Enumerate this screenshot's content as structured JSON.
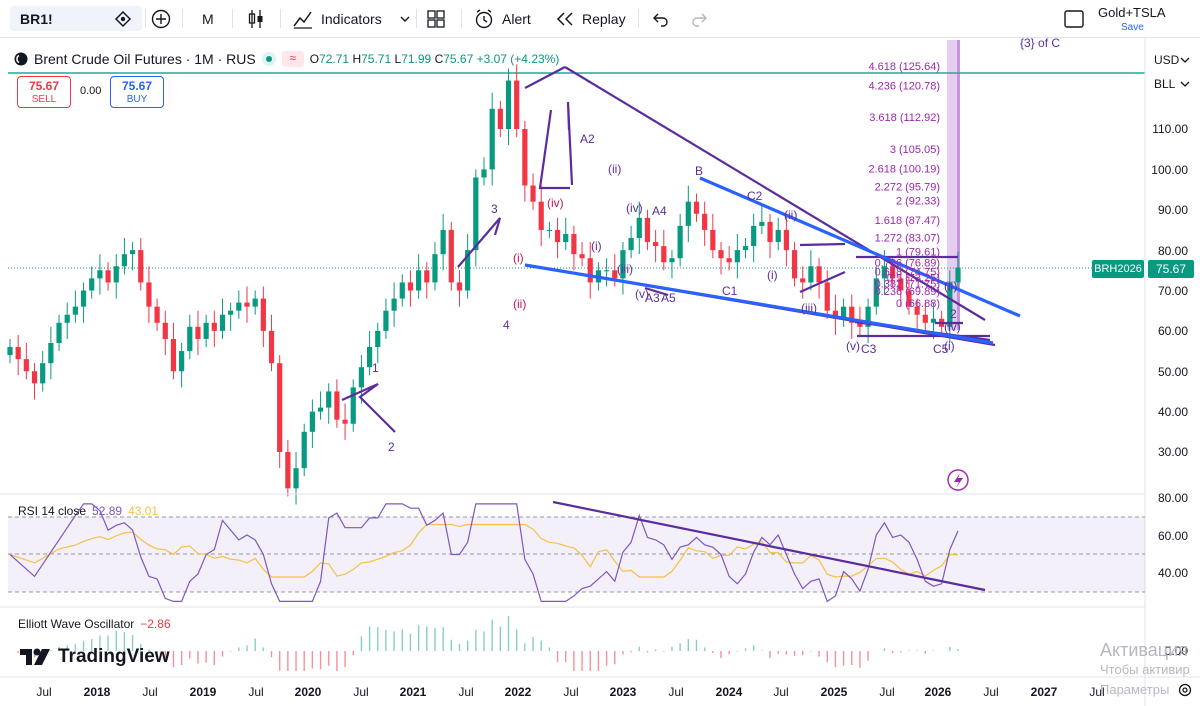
{
  "toolbar": {
    "symbol": "BR1!",
    "interval": "M",
    "indicators_label": "Indicators",
    "alert_label": "Alert",
    "replay_label": "Replay",
    "layout_name": "Gold+TSLA",
    "save_label": "Save"
  },
  "legend": {
    "title": "Brent Crude Oil Futures · 1M · RUS",
    "open_key": "O",
    "open": "72.71",
    "high_key": "H",
    "high": "75.71",
    "low_key": "L",
    "low": "71.99",
    "close_key": "C",
    "close": "75.67",
    "change": "+3.07 (+4.23%)"
  },
  "trade": {
    "sell_price": "75.67",
    "sell_label": "SELL",
    "spread": "0.00",
    "buy_price": "75.67",
    "buy_label": "BUY"
  },
  "price_axis": {
    "currency": "USD",
    "unit": "BLL",
    "ticks": [
      "110.00",
      "100.00",
      "90.00",
      "80.00",
      "70.00",
      "60.00",
      "50.00",
      "40.00",
      "30.00"
    ],
    "last_price": "75.67",
    "last_symbol": "BRH2026"
  },
  "rsi": {
    "label": "RSI 14 close",
    "value": "52.89",
    "ma_value": "43.01",
    "ticks": [
      "80.00",
      "60.00",
      "40.00"
    ]
  },
  "ewo": {
    "label": "Elliott Wave Oscillator",
    "value": "−2.86",
    "tick": "0.00"
  },
  "fib_levels": [
    "4.618 (125.64)",
    "4.236 (120.78)",
    "3.618 (112.92)",
    "3 (105.05)",
    "2.618 (100.19)",
    "2.272 (95.79)",
    "2 (92.33)",
    "1.618 (87.47)",
    "1.272 (83.07)",
    "1 (79.61)",
    "0.786 (76.89)",
    "0.618 (74.75)",
    "0.5 (73.25)",
    "0.382 (71.75)",
    "0.236 (69.89)",
    "0 (66.88)"
  ],
  "wave_labels": [
    "{3} of C",
    "1",
    "2",
    "3",
    "4",
    "(i)",
    "(ii)",
    "(iv)",
    "A2",
    "(ii)",
    "(iv)",
    "A4",
    "(iii)",
    "(v)",
    "A3",
    "A5",
    "(i)",
    "B",
    "C2",
    "(ii)",
    "(i)",
    "C1",
    "(iii)",
    "(v)",
    "C3",
    "C5",
    "(iv)",
    "(ii)",
    "2",
    "(i)"
  ],
  "x_axis": [
    "Jul",
    "2018",
    "Jul",
    "2019",
    "Jul",
    "2020",
    "Jul",
    "2021",
    "Jul",
    "2022",
    "Jul",
    "2023",
    "Jul",
    "2024",
    "Jul",
    "2025",
    "Jul",
    "2026",
    "Jul",
    "2027",
    "Jul"
  ],
  "branding": {
    "logo_text": "TradingView"
  },
  "activation": {
    "line1": "Активация",
    "line2": "Чтобы активир",
    "line3": "Параметры"
  },
  "colors": {
    "up": "#089981",
    "down": "#f23645",
    "wave": "#5b2c9e",
    "trend": "#2962ff"
  },
  "chart_data": {
    "type": "candlestick",
    "title": "Brent Crude Oil Futures · 1M",
    "ylim": [
      22,
      128
    ],
    "series": [
      {
        "name": "close_approx",
        "values": [
          56,
          53,
          50,
          47,
          52,
          57,
          62,
          64,
          66,
          70,
          73,
          75,
          72,
          76,
          79,
          80,
          72,
          66,
          62,
          58,
          50,
          55,
          61,
          58,
          62,
          60,
          64,
          65,
          67,
          66,
          68,
          60,
          52,
          30,
          21,
          26,
          35,
          40,
          41,
          45,
          38,
          37,
          46,
          51,
          56,
          60,
          65,
          68,
          72,
          70,
          75,
          72,
          79,
          85,
          72,
          70,
          80,
          98,
          100,
          115,
          110,
          122,
          110,
          96,
          92,
          85,
          85,
          82,
          84,
          79,
          78,
          72,
          75,
          75,
          73,
          80,
          83,
          88,
          82,
          81,
          77,
          78,
          86,
          92,
          89,
          85,
          80,
          78,
          77,
          80,
          81,
          86,
          87,
          82,
          85,
          80,
          73,
          72,
          76,
          72,
          65,
          63,
          66,
          62,
          61,
          66,
          73,
          76,
          73,
          70,
          66,
          64,
          62,
          63,
          61,
          72,
          75.67
        ]
      }
    ],
    "rsi_range": [
      20,
      80
    ],
    "rsi_latest": 52.89,
    "rsi_ma_latest": 43.01,
    "ewo_latest": -2.86
  }
}
